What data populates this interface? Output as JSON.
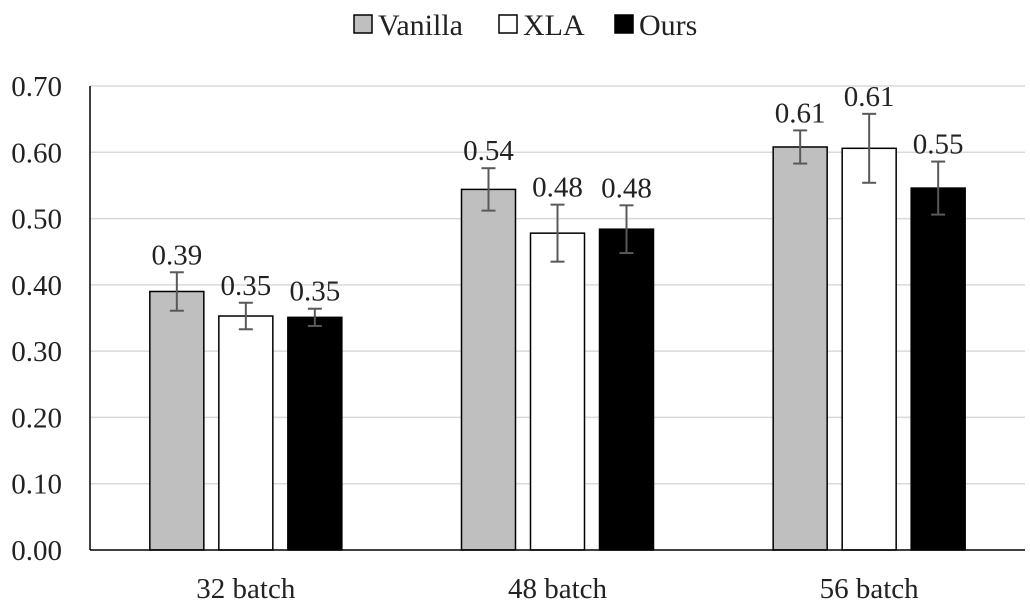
{
  "chart_data": {
    "type": "bar",
    "categories": [
      "32 batch",
      "48 batch",
      "56 batch"
    ],
    "series": [
      {
        "name": "Vanilla",
        "color": "#bfbfbf",
        "values": [
          0.39,
          0.544,
          0.608
        ],
        "labels": [
          "0.39",
          "0.54",
          "0.61"
        ],
        "error": [
          0.029,
          0.032,
          0.025
        ]
      },
      {
        "name": "XLA",
        "color": "#ffffff",
        "values": [
          0.353,
          0.478,
          0.606
        ],
        "labels": [
          "0.35",
          "0.48",
          "0.61"
        ],
        "error": [
          0.02,
          0.043,
          0.052
        ]
      },
      {
        "name": "Ours",
        "color": "#000000",
        "values": [
          0.351,
          0.484,
          0.546
        ],
        "labels": [
          "0.35",
          "0.48",
          "0.55"
        ],
        "error": [
          0.013,
          0.036,
          0.04
        ]
      }
    ],
    "yticks": [
      "0.00",
      "0.10",
      "0.20",
      "0.30",
      "0.40",
      "0.50",
      "0.60",
      "0.70"
    ],
    "ylim": [
      0,
      0.7
    ],
    "title": "",
    "xlabel": "",
    "ylabel": "",
    "grid": true,
    "legend_position": "top-center"
  }
}
